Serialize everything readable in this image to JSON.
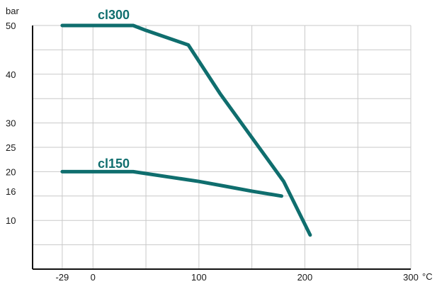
{
  "chart_data": {
    "type": "line",
    "title": "",
    "xlabel": "",
    "ylabel": "",
    "y_unit": "bar",
    "x_unit": "°C",
    "xlim": [
      -57,
      300
    ],
    "ylim": [
      0,
      50
    ],
    "x_ticks": [
      {
        "value": -29,
        "label": "-29"
      },
      {
        "value": 0,
        "label": "0"
      },
      {
        "value": 100,
        "label": "100"
      },
      {
        "value": 200,
        "label": "200"
      },
      {
        "value": 300,
        "label": "300"
      }
    ],
    "y_ticks": [
      {
        "value": 10,
        "label": "10"
      },
      {
        "value": 16,
        "label": "16"
      },
      {
        "value": 20,
        "label": "20"
      },
      {
        "value": 25,
        "label": "25"
      },
      {
        "value": 30,
        "label": "30"
      },
      {
        "value": 40,
        "label": "40"
      },
      {
        "value": 50,
        "label": "50"
      }
    ],
    "x_grid": [
      -29,
      0,
      50,
      100,
      150,
      200,
      250
    ],
    "y_grid": [
      5,
      10,
      15,
      20,
      25,
      30,
      35,
      40,
      45,
      50
    ],
    "grid": true,
    "series": [
      {
        "name": "cl300",
        "color": "#0f6e6e",
        "x": [
          -29,
          38,
          50,
          90,
          120,
          150,
          180,
          205
        ],
        "y": [
          50,
          50,
          49,
          46,
          36,
          27,
          18,
          7
        ]
      },
      {
        "name": "cl150",
        "color": "#0f6e6e",
        "x": [
          -29,
          38,
          100,
          125,
          150,
          178
        ],
        "y": [
          20,
          20,
          18,
          17,
          16,
          15
        ]
      }
    ]
  }
}
